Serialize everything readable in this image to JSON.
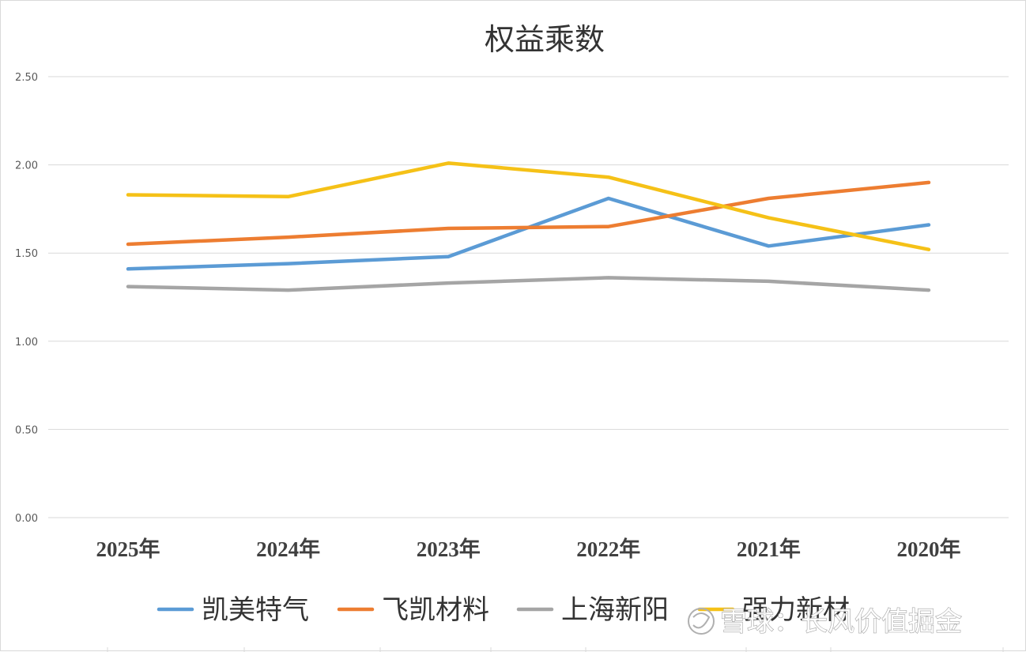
{
  "chart_data": {
    "type": "line",
    "title": "权益乘数",
    "categories": [
      "2025年",
      "2024年",
      "2023年",
      "2022年",
      "2021年",
      "2020年"
    ],
    "ylim": [
      0,
      2.5
    ],
    "yticks": [
      "0.00",
      "0.50",
      "1.00",
      "1.50",
      "2.00",
      "2.50"
    ],
    "ytick_values": [
      0,
      0.5,
      1.0,
      1.5,
      2.0,
      2.5
    ],
    "grid": true,
    "legend_position": "bottom",
    "series": [
      {
        "name": "凯美特气",
        "color": "#5b9bd5",
        "values": [
          1.41,
          1.44,
          1.48,
          1.81,
          1.54,
          1.66
        ]
      },
      {
        "name": "飞凯材料",
        "color": "#ed7d31",
        "values": [
          1.55,
          1.59,
          1.64,
          1.65,
          1.81,
          1.9
        ]
      },
      {
        "name": "上海新阳",
        "color": "#a5a5a5",
        "values": [
          1.31,
          1.29,
          1.33,
          1.36,
          1.34,
          1.29
        ]
      },
      {
        "name": "强力新材",
        "color": "#f5c117",
        "values": [
          1.83,
          1.82,
          2.01,
          1.93,
          1.7,
          1.52
        ]
      }
    ]
  },
  "watermark": {
    "text": "雪球：长风价值掘金"
  }
}
